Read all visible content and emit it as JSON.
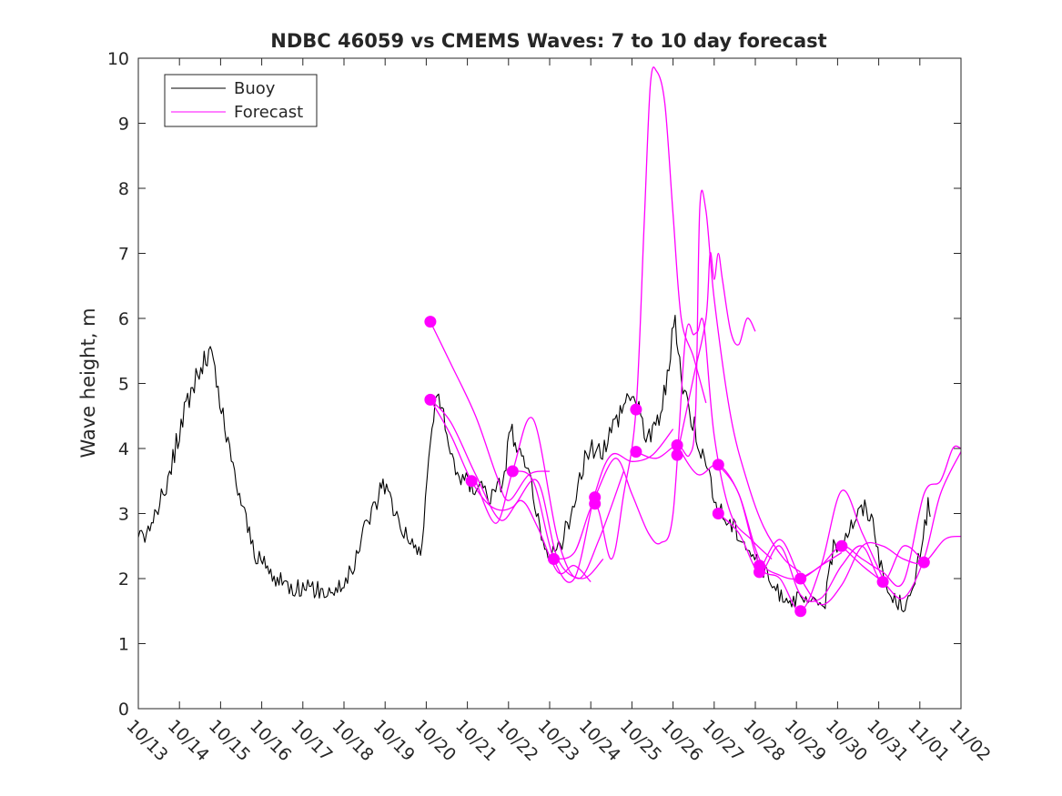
{
  "chart_data": {
    "type": "line",
    "title": "NDBC 46059 vs CMEMS Waves: 7 to 10 day forecast",
    "xlabel": "",
    "ylabel": "Wave height, m",
    "x_unit": "days since 10/13",
    "xlim": [
      0,
      20
    ],
    "ylim": [
      0,
      10
    ],
    "x_ticks": [
      {
        "x": 0,
        "label": "10/13"
      },
      {
        "x": 1,
        "label": "10/14"
      },
      {
        "x": 2,
        "label": "10/15"
      },
      {
        "x": 3,
        "label": "10/16"
      },
      {
        "x": 4,
        "label": "10/17"
      },
      {
        "x": 5,
        "label": "10/18"
      },
      {
        "x": 6,
        "label": "10/19"
      },
      {
        "x": 7,
        "label": "10/20"
      },
      {
        "x": 8,
        "label": "10/21"
      },
      {
        "x": 9,
        "label": "10/22"
      },
      {
        "x": 10,
        "label": "10/23"
      },
      {
        "x": 11,
        "label": "10/24"
      },
      {
        "x": 12,
        "label": "10/25"
      },
      {
        "x": 13,
        "label": "10/26"
      },
      {
        "x": 14,
        "label": "10/27"
      },
      {
        "x": 15,
        "label": "10/28"
      },
      {
        "x": 16,
        "label": "10/29"
      },
      {
        "x": 17,
        "label": "10/30"
      },
      {
        "x": 18,
        "label": "10/31"
      },
      {
        "x": 19,
        "label": "11/01"
      },
      {
        "x": 20,
        "label": "11/02"
      }
    ],
    "y_ticks": [
      0,
      1,
      2,
      3,
      4,
      5,
      6,
      7,
      8,
      9,
      10
    ],
    "legend": {
      "position": "top-left",
      "entries": [
        {
          "label": "Buoy",
          "color": "#000000"
        },
        {
          "label": "Forecast",
          "color": "#ff00ff"
        }
      ]
    },
    "series": [
      {
        "name": "Buoy",
        "color": "#000000",
        "noise": 0.15,
        "points": [
          [
            0.0,
            2.6
          ],
          [
            0.2,
            2.7
          ],
          [
            0.4,
            2.9
          ],
          [
            0.6,
            3.3
          ],
          [
            0.8,
            3.7
          ],
          [
            1.0,
            4.3
          ],
          [
            1.2,
            4.7
          ],
          [
            1.4,
            5.1
          ],
          [
            1.6,
            5.3
          ],
          [
            1.75,
            5.5
          ],
          [
            1.9,
            5.0
          ],
          [
            2.1,
            4.3
          ],
          [
            2.3,
            3.7
          ],
          [
            2.5,
            3.2
          ],
          [
            2.7,
            2.7
          ],
          [
            2.9,
            2.3
          ],
          [
            3.1,
            2.2
          ],
          [
            3.3,
            2.0
          ],
          [
            3.5,
            1.95
          ],
          [
            3.8,
            1.85
          ],
          [
            4.2,
            1.85
          ],
          [
            4.6,
            1.8
          ],
          [
            5.0,
            1.9
          ],
          [
            5.3,
            2.3
          ],
          [
            5.5,
            2.8
          ],
          [
            5.8,
            3.2
          ],
          [
            5.95,
            3.55
          ],
          [
            6.2,
            3.1
          ],
          [
            6.5,
            2.7
          ],
          [
            6.7,
            2.4
          ],
          [
            6.9,
            2.5
          ],
          [
            7.1,
            4.2
          ],
          [
            7.3,
            4.9
          ],
          [
            7.5,
            4.1
          ],
          [
            7.8,
            3.6
          ],
          [
            8.1,
            3.4
          ],
          [
            8.3,
            3.5
          ],
          [
            8.6,
            3.2
          ],
          [
            8.9,
            3.6
          ],
          [
            9.05,
            4.4
          ],
          [
            9.2,
            3.9
          ],
          [
            9.4,
            3.7
          ],
          [
            9.6,
            3.4
          ],
          [
            9.8,
            2.5
          ],
          [
            10.0,
            2.3
          ],
          [
            10.3,
            2.6
          ],
          [
            10.6,
            3.1
          ],
          [
            10.9,
            4.0
          ],
          [
            11.2,
            3.9
          ],
          [
            11.5,
            4.3
          ],
          [
            11.8,
            4.7
          ],
          [
            12.0,
            4.9
          ],
          [
            12.3,
            4.3
          ],
          [
            12.5,
            4.2
          ],
          [
            12.7,
            4.6
          ],
          [
            12.9,
            5.2
          ],
          [
            13.05,
            6.1
          ],
          [
            13.2,
            5.1
          ],
          [
            13.4,
            4.6
          ],
          [
            13.6,
            4.2
          ],
          [
            13.8,
            3.7
          ],
          [
            14.0,
            3.2
          ],
          [
            14.3,
            2.9
          ],
          [
            14.6,
            2.7
          ],
          [
            14.9,
            2.4
          ],
          [
            15.2,
            2.1
          ],
          [
            15.5,
            1.8
          ],
          [
            15.8,
            1.7
          ],
          [
            16.1,
            1.65
          ],
          [
            16.4,
            1.6
          ],
          [
            16.7,
            1.65
          ],
          [
            16.9,
            2.5
          ],
          [
            17.2,
            2.7
          ],
          [
            17.5,
            3.0
          ],
          [
            17.7,
            3.1
          ],
          [
            17.9,
            2.8
          ],
          [
            18.1,
            2.0
          ],
          [
            18.3,
            1.7
          ],
          [
            18.6,
            1.6
          ],
          [
            18.8,
            1.7
          ],
          [
            19.0,
            2.4
          ],
          [
            19.2,
            3.1
          ],
          [
            19.25,
            2.95
          ]
        ]
      },
      {
        "name": "Forecast",
        "color": "#ff00ff",
        "lines": [
          [
            [
              7.1,
              5.95
            ],
            [
              7.6,
              5.3
            ],
            [
              8.2,
              4.5
            ],
            [
              8.7,
              3.6
            ],
            [
              9.0,
              3.2
            ],
            [
              9.5,
              3.6
            ],
            [
              10.0,
              3.65
            ]
          ],
          [
            [
              7.1,
              4.75
            ],
            [
              7.6,
              4.4
            ],
            [
              8.2,
              3.6
            ],
            [
              8.8,
              2.9
            ],
            [
              9.3,
              3.2
            ],
            [
              9.7,
              2.8
            ],
            [
              10.2,
              2.1
            ],
            [
              10.6,
              2.2
            ],
            [
              11.0,
              1.95
            ]
          ],
          [
            [
              7.1,
              4.75
            ],
            [
              7.6,
              4.2
            ],
            [
              8.1,
              3.5
            ],
            [
              8.6,
              3.1
            ],
            [
              9.1,
              3.1
            ],
            [
              9.7,
              3.5
            ],
            [
              10.2,
              2.3
            ],
            [
              10.8,
              2.0
            ],
            [
              11.3,
              2.3
            ]
          ],
          [
            [
              8.2,
              3.5
            ],
            [
              8.7,
              2.85
            ],
            [
              9.1,
              3.65
            ],
            [
              9.6,
              4.45
            ],
            [
              10.2,
              2.6
            ],
            [
              10.7,
              2.0
            ],
            [
              11.2,
              2.6
            ],
            [
              11.8,
              3.65
            ]
          ],
          [
            [
              9.1,
              3.65
            ],
            [
              9.6,
              3.5
            ],
            [
              10.1,
              2.3
            ],
            [
              10.6,
              2.0
            ],
            [
              11.1,
              3.3
            ],
            [
              11.5,
              3.9
            ],
            [
              12.0,
              3.8
            ],
            [
              12.5,
              3.9
            ],
            [
              13.0,
              4.3
            ]
          ],
          [
            [
              10.1,
              2.3
            ],
            [
              10.6,
              2.4
            ],
            [
              11.1,
              3.15
            ],
            [
              11.5,
              2.3
            ],
            [
              11.8,
              3.3
            ],
            [
              12.1,
              4.6
            ],
            [
              12.3,
              7.5
            ],
            [
              12.45,
              9.6
            ],
            [
              12.6,
              9.8
            ],
            [
              12.8,
              9.3
            ],
            [
              13.0,
              7.6
            ],
            [
              13.2,
              6.0
            ],
            [
              13.5,
              5.4
            ],
            [
              13.8,
              4.7
            ]
          ],
          [
            [
              11.1,
              3.25
            ],
            [
              11.6,
              3.85
            ],
            [
              12.0,
              3.3
            ],
            [
              12.4,
              2.7
            ],
            [
              12.7,
              2.55
            ],
            [
              13.0,
              3.0
            ],
            [
              13.3,
              5.7
            ],
            [
              13.5,
              5.75
            ],
            [
              13.6,
              5.8
            ],
            [
              13.75,
              5.9
            ],
            [
              14.0,
              4.2
            ],
            [
              14.4,
              3.0
            ],
            [
              14.9,
              2.6
            ],
            [
              15.4,
              2.3
            ]
          ],
          [
            [
              12.1,
              3.95
            ],
            [
              12.6,
              3.85
            ],
            [
              13.1,
              4.05
            ],
            [
              13.4,
              3.9
            ],
            [
              13.55,
              4.6
            ],
            [
              13.65,
              7.7
            ],
            [
              13.8,
              7.65
            ],
            [
              14.0,
              6.3
            ],
            [
              14.4,
              4.5
            ],
            [
              14.8,
              3.5
            ],
            [
              15.2,
              2.8
            ],
            [
              15.7,
              2.3
            ],
            [
              16.1,
              2.1
            ]
          ],
          [
            [
              13.1,
              3.9
            ],
            [
              13.5,
              5.1
            ],
            [
              13.8,
              6.0
            ],
            [
              13.9,
              7.0
            ],
            [
              14.0,
              6.6
            ],
            [
              14.1,
              7.0
            ],
            [
              14.2,
              6.6
            ],
            [
              14.4,
              5.8
            ],
            [
              14.6,
              5.6
            ],
            [
              14.8,
              6.0
            ],
            [
              15.0,
              5.8
            ]
          ],
          [
            [
              13.1,
              4.05
            ],
            [
              13.6,
              3.6
            ],
            [
              14.1,
              3.75
            ],
            [
              14.6,
              3.3
            ],
            [
              15.1,
              2.3
            ],
            [
              15.6,
              2.05
            ],
            [
              16.1,
              2.0
            ],
            [
              16.6,
              2.2
            ],
            [
              17.1,
              2.4
            ]
          ],
          [
            [
              14.1,
              3.75
            ],
            [
              14.6,
              3.3
            ],
            [
              15.1,
              2.2
            ],
            [
              15.6,
              2.0
            ],
            [
              16.1,
              1.5
            ],
            [
              16.6,
              2.2
            ],
            [
              17.1,
              3.35
            ],
            [
              17.6,
              2.7
            ],
            [
              18.1,
              2.0
            ]
          ],
          [
            [
              14.1,
              3.0
            ],
            [
              14.6,
              2.7
            ],
            [
              15.1,
              2.1
            ],
            [
              15.6,
              2.5
            ],
            [
              16.1,
              1.75
            ],
            [
              16.6,
              1.7
            ],
            [
              17.1,
              2.2
            ],
            [
              17.6,
              2.5
            ],
            [
              18.1,
              1.95
            ],
            [
              18.6,
              2.5
            ],
            [
              19.1,
              2.25
            ]
          ],
          [
            [
              15.1,
              2.1
            ],
            [
              15.6,
              2.6
            ],
            [
              16.1,
              2.0
            ],
            [
              16.6,
              1.6
            ],
            [
              17.1,
              1.9
            ],
            [
              17.6,
              2.5
            ],
            [
              18.1,
              2.5
            ],
            [
              18.6,
              2.3
            ],
            [
              19.1,
              2.25
            ],
            [
              19.6,
              2.6
            ],
            [
              20.0,
              2.65
            ]
          ],
          [
            [
              16.1,
              2.0
            ],
            [
              16.6,
              2.2
            ],
            [
              17.1,
              2.5
            ],
            [
              17.6,
              2.3
            ],
            [
              18.1,
              2.1
            ],
            [
              18.6,
              1.95
            ],
            [
              19.1,
              3.3
            ],
            [
              19.5,
              3.5
            ],
            [
              19.8,
              4.0
            ],
            [
              20.0,
              4.0
            ]
          ],
          [
            [
              17.1,
              2.5
            ],
            [
              17.6,
              2.2
            ],
            [
              18.1,
              1.95
            ],
            [
              18.6,
              1.7
            ],
            [
              19.1,
              2.3
            ],
            [
              19.5,
              3.3
            ],
            [
              20.0,
              3.95
            ]
          ]
        ]
      }
    ],
    "forecast_markers": [
      [
        7.1,
        5.95
      ],
      [
        7.1,
        4.75
      ],
      [
        8.1,
        3.5
      ],
      [
        9.1,
        3.65
      ],
      [
        10.1,
        2.3
      ],
      [
        11.1,
        3.15
      ],
      [
        11.1,
        3.25
      ],
      [
        12.1,
        4.6
      ],
      [
        12.1,
        3.95
      ],
      [
        13.1,
        4.05
      ],
      [
        13.1,
        3.9
      ],
      [
        14.1,
        3.75
      ],
      [
        14.1,
        3.0
      ],
      [
        15.1,
        2.1
      ],
      [
        15.1,
        2.2
      ],
      [
        16.1,
        2.0
      ],
      [
        16.1,
        1.5
      ],
      [
        17.1,
        2.5
      ],
      [
        18.1,
        1.95
      ],
      [
        19.1,
        2.25
      ]
    ]
  }
}
